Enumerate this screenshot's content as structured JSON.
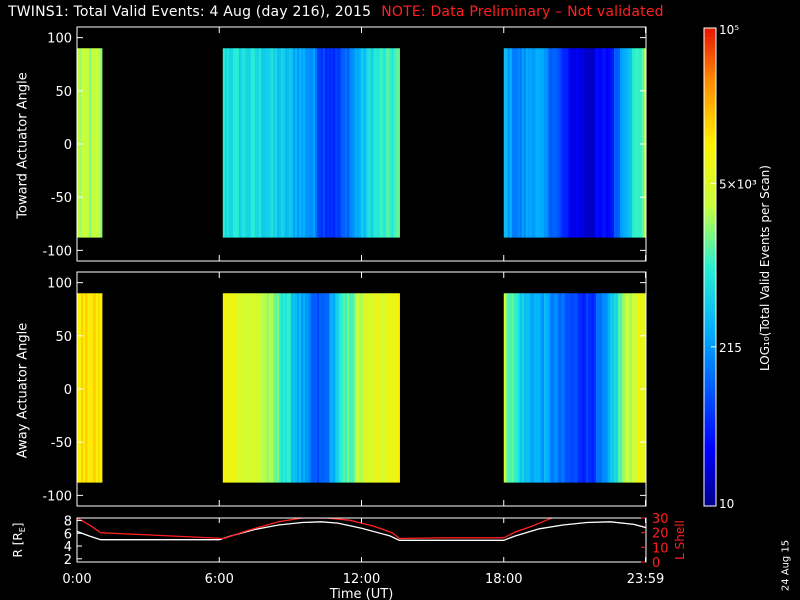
{
  "title": {
    "main": "TWINS1: Total Valid Events:  4 Aug (day 216), 2015",
    "note": "NOTE: Data Preliminary – Not validated",
    "note_color": "#ff2020"
  },
  "stamp": "24 Aug 15",
  "colors": {
    "ephem_R": "#ffffff",
    "ephem_L": "#ff2020",
    "axis": "#ffffff",
    "background": "#000000"
  },
  "chart_data": [
    {
      "type": "heatmap",
      "id": "toward",
      "ylabel": "Toward Actuator Angle",
      "ylim": [
        -110,
        110
      ],
      "yticks": [
        100,
        50,
        0,
        -50,
        -100
      ],
      "xlim": [
        0,
        24
      ],
      "xticks": [
        "0:00",
        "6:00",
        "12:00",
        "18:00",
        "23:59"
      ],
      "xtick_hours": [
        0,
        6,
        12,
        18,
        23.98
      ],
      "angle_range": [
        -88,
        90
      ],
      "segments": [
        {
          "start_h": 0.0,
          "end_h": 1.05,
          "profile": [
            [
              0,
              3.45
            ],
            [
              1,
              3.4
            ]
          ]
        },
        {
          "start_h": 6.15,
          "end_h": 13.6,
          "profile": [
            [
              0,
              2.9
            ],
            [
              0.25,
              2.8
            ],
            [
              0.45,
              2.45
            ],
            [
              0.52,
              2.25
            ],
            [
              0.55,
              1.9
            ],
            [
              0.65,
              1.75
            ],
            [
              0.75,
              2.4
            ],
            [
              0.85,
              2.9
            ],
            [
              1,
              3.1
            ]
          ]
        },
        {
          "start_h": 18.0,
          "end_h": 24.0,
          "profile": [
            [
              0,
              2.6
            ],
            [
              0.1,
              2.15
            ],
            [
              0.2,
              2.5
            ],
            [
              0.35,
              2.1
            ],
            [
              0.45,
              1.5
            ],
            [
              0.6,
              1.3
            ],
            [
              0.75,
              1.55
            ],
            [
              0.85,
              2.6
            ],
            [
              1,
              3.3
            ]
          ]
        }
      ]
    },
    {
      "type": "heatmap",
      "id": "away",
      "ylabel": "Away Actuator Angle",
      "ylim": [
        -110,
        110
      ],
      "yticks": [
        100,
        50,
        0,
        -50,
        -100
      ],
      "xlim": [
        0,
        24
      ],
      "xticks": [
        "0:00",
        "6:00",
        "12:00",
        "18:00",
        "23:59"
      ],
      "xtick_hours": [
        0,
        6,
        12,
        18,
        23.98
      ],
      "angle_range": [
        -88,
        90
      ],
      "segments": [
        {
          "start_h": 0.0,
          "end_h": 1.05,
          "profile": [
            [
              0,
              4.1
            ],
            [
              1,
              4.05
            ]
          ]
        },
        {
          "start_h": 6.15,
          "end_h": 13.6,
          "profile": [
            [
              0,
              3.9
            ],
            [
              0.2,
              3.6
            ],
            [
              0.35,
              3.0
            ],
            [
              0.45,
              2.4
            ],
            [
              0.52,
              1.9
            ],
            [
              0.58,
              2.0
            ],
            [
              0.65,
              2.8
            ],
            [
              0.8,
              3.6
            ],
            [
              1,
              4.0
            ]
          ]
        },
        {
          "start_h": 18.0,
          "end_h": 24.0,
          "profile": [
            [
              0,
              3.5
            ],
            [
              0.15,
              2.6
            ],
            [
              0.3,
              2.4
            ],
            [
              0.45,
              1.9
            ],
            [
              0.6,
              1.75
            ],
            [
              0.72,
              2.2
            ],
            [
              0.85,
              3.4
            ],
            [
              1,
              3.95
            ]
          ]
        }
      ]
    },
    {
      "type": "colorbar",
      "id": "colorbar",
      "label": "LOG₁₀(Total Valid Events per Scan)",
      "min": 1,
      "max": 5,
      "ticks": [
        {
          "value": 5,
          "label": "10⁵"
        },
        {
          "value": 3.699,
          "label": "5×10³"
        },
        {
          "value": 2.332,
          "label": "215"
        },
        {
          "value": 1,
          "label": "10"
        }
      ]
    },
    {
      "type": "line",
      "id": "ephemeris",
      "xlabel": "Time (UT)",
      "xlim": [
        0,
        24
      ],
      "xticks": [
        "0:00",
        "6:00",
        "12:00",
        "18:00",
        "23:59"
      ],
      "xtick_hours": [
        0,
        6,
        12,
        18,
        23.98
      ],
      "left_axis": {
        "label": "R [R",
        "label_sub": "E",
        "label_end": "]",
        "ylim": [
          1.5,
          8.4
        ],
        "ticks": [
          8,
          6,
          4,
          2
        ]
      },
      "right_axis": {
        "label": "L Shell",
        "ylim": [
          0,
          30
        ],
        "ticks": [
          30,
          20,
          10,
          0
        ]
      },
      "series": [
        {
          "axis": "left",
          "color": "#ffffff",
          "x": [
            0,
            0.5,
            1.0,
            2,
            4,
            6.0,
            6.5,
            7.5,
            8.5,
            9.5,
            10.3,
            11,
            12,
            13.2,
            13.6,
            14.5,
            16,
            18.0,
            18.5,
            19.5,
            20.5,
            21.5,
            22.5,
            23.5,
            24
          ],
          "y": [
            6.3,
            5.6,
            5.0,
            5.0,
            5.0,
            5.0,
            5.6,
            6.6,
            7.3,
            7.7,
            7.8,
            7.6,
            6.8,
            5.6,
            4.9,
            4.9,
            4.9,
            4.9,
            5.6,
            6.7,
            7.3,
            7.7,
            7.8,
            7.4,
            6.9
          ]
        },
        {
          "axis": "right",
          "color": "#ff2020",
          "x": [
            0,
            0.5,
            1.0,
            3,
            6.2,
            7.2,
            8.5,
            9.5,
            10.5,
            11.5,
            12.5,
            13.3,
            13.6,
            15.5,
            18.0,
            18.5,
            19.2,
            19.8,
            20.2
          ],
          "y": [
            30,
            25.5,
            20.0,
            18.5,
            16.0,
            21.5,
            27.5,
            30,
            30,
            28.5,
            24.5,
            20.0,
            16.0,
            16.5,
            16.5,
            20.5,
            24.5,
            28.5,
            31
          ]
        }
      ]
    }
  ]
}
